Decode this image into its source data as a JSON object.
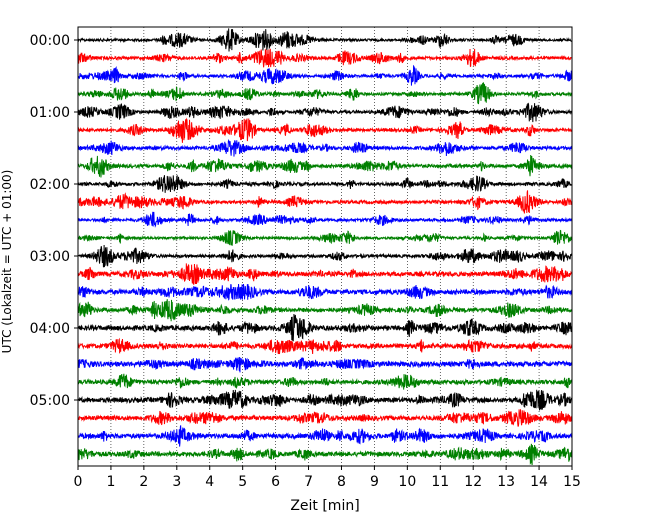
{
  "chart_data": {
    "type": "line",
    "title": "",
    "xlabel": "Zeit  [min]",
    "ylabel": "UTC (Lokalzeit = UTC + 01:00)",
    "xlim": [
      0,
      15
    ],
    "x_ticks": [
      0,
      1,
      2,
      3,
      4,
      5,
      6,
      7,
      8,
      9,
      10,
      11,
      12,
      13,
      14,
      15
    ],
    "x_tick_labels": [
      "0",
      "1",
      "2",
      "3",
      "4",
      "5",
      "6",
      "7",
      "8",
      "9",
      "10",
      "11",
      "12",
      "13",
      "14",
      "15"
    ],
    "y_tick_labels": [
      "00:00",
      "01:00",
      "02:00",
      "03:00",
      "04:00",
      "05:00"
    ],
    "row_minutes": 15,
    "row_count": 24,
    "row_colors": [
      "#000000",
      "#ff0000",
      "#0000ff",
      "#008000"
    ],
    "grid": {
      "x": true,
      "y": false,
      "style": "dotted"
    },
    "legend": "none"
  }
}
